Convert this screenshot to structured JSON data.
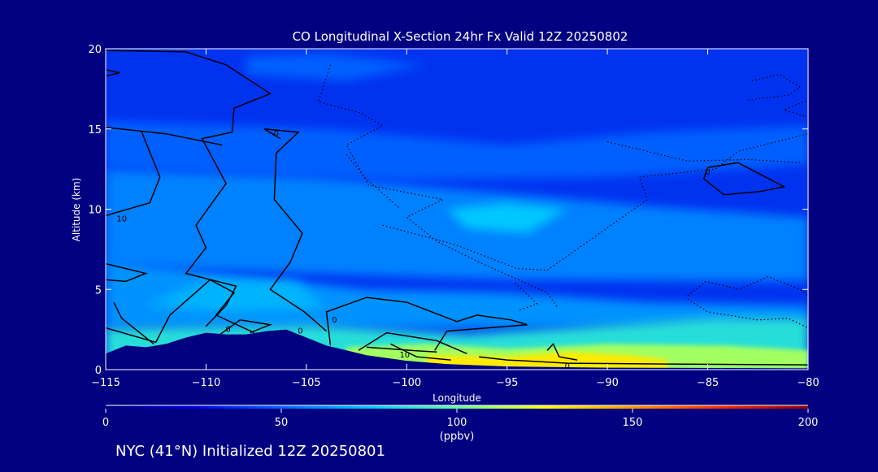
{
  "chart_data": {
    "type": "heatmap",
    "title": "CO Longitudinal X-Section 24hr  Fx Valid 12Z 20250802",
    "xlabel": "Longitude",
    "ylabel": "Altitude (km)",
    "xlim": [
      -115,
      -80
    ],
    "ylim": [
      0,
      20
    ],
    "x_ticks": [
      -115,
      -110,
      -105,
      -100,
      -95,
      -90,
      -85,
      -80
    ],
    "x_tick_labels": [
      "−115",
      "−110",
      "−105",
      "−100",
      "−95",
      "−90",
      "−85",
      "−80"
    ],
    "y_ticks": [
      0,
      5,
      10,
      15,
      20
    ],
    "y_tick_labels": [
      "0",
      "5",
      "10",
      "15",
      "20"
    ],
    "colorbar": {
      "min": 0,
      "max": 200,
      "ticks": [
        0,
        50,
        100,
        150,
        200
      ],
      "tick_labels": [
        "0",
        "50",
        "100",
        "150",
        "200"
      ],
      "unit_lines": [
        "100",
        "(ppbv)"
      ],
      "colors": [
        "#00007a",
        "#0000e0",
        "#0060ff",
        "#00c8ff",
        "#64ffa0",
        "#ffff00",
        "#ff9600",
        "#ff2800",
        "#8c0000"
      ]
    },
    "terrain": [
      [
        -115,
        1.0
      ],
      [
        -114,
        1.5
      ],
      [
        -113,
        1.4
      ],
      [
        -112,
        1.6
      ],
      [
        -111,
        2.0
      ],
      [
        -110,
        2.3
      ],
      [
        -109,
        2.2
      ],
      [
        -108,
        2.2
      ],
      [
        -107,
        2.4
      ],
      [
        -106,
        2.5
      ],
      [
        -105,
        2.0
      ],
      [
        -104,
        1.5
      ],
      [
        -103,
        1.2
      ],
      [
        -102,
        0.9
      ],
      [
        -100,
        0.55
      ],
      [
        -98,
        0.35
      ],
      [
        -95,
        0.2
      ],
      [
        -90,
        0.12
      ],
      [
        -85,
        0.1
      ],
      [
        -80,
        0.08
      ]
    ],
    "field_levels": [
      {
        "name": "background",
        "value": 38
      },
      {
        "name": "upper-lighter",
        "value": 50
      },
      {
        "name": "mid-band",
        "value": 58
      },
      {
        "name": "lower-band",
        "value": 62
      },
      {
        "name": "near-surface",
        "value": 70
      },
      {
        "name": "mid-maximum",
        "value": 75
      },
      {
        "name": "boundary-layer",
        "value": 85
      },
      {
        "name": "surface-plume",
        "value": 110
      },
      {
        "name": "plume-core",
        "value": 130
      }
    ],
    "contour_labels": [
      {
        "text": "0",
        "lon": -106.5,
        "alt": 14.7
      },
      {
        "text": "10",
        "lon": -114.2,
        "alt": 9.4
      },
      {
        "text": "0",
        "lon": -105.3,
        "alt": 2.4
      },
      {
        "text": "0",
        "lon": -108.9,
        "alt": 2.5
      },
      {
        "text": "0",
        "lon": -103.6,
        "alt": 3.1
      },
      {
        "text": "10",
        "lon": -100.1,
        "alt": 0.9
      },
      {
        "text": "0",
        "lon": -92.0,
        "alt": 0.2
      },
      {
        "text": "0",
        "lon": -85.0,
        "alt": 12.3
      }
    ]
  },
  "footer": {
    "caption": "NYC (41°N) Initialized 12Z 20250801"
  }
}
